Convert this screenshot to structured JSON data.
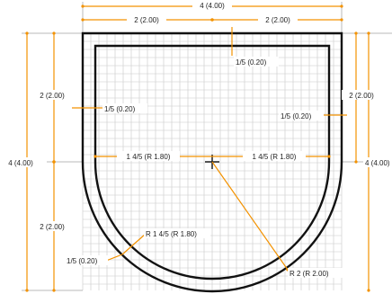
{
  "dimensions": {
    "top_total": "4 (4.00)",
    "top_left_half": "2 (2.00)",
    "top_right_half": "2 (2.00)",
    "left_total": "4 (4.00)",
    "left_upper": "2 (2.00)",
    "left_lower": "2 (2.00)",
    "right_upper": "2 (2.00)",
    "right_total": "4 (4.00)",
    "top_wall": "1/5 (0.20)",
    "left_wall": "1/5 (0.20)",
    "right_wall": "1/5 (0.20)",
    "bottom_wall": "1/5 (0.20)",
    "inner_half_left": "1 4/5 (R 1.80)",
    "inner_half_right": "1 4/5 (R 1.80)",
    "inner_radius": "R 1 4/5 (R 1.80)",
    "outer_radius": "R 2 (R 2.00)"
  },
  "colors": {
    "dimension": "#f39200",
    "outline": "#111111",
    "grid": "#c8c8c8"
  }
}
